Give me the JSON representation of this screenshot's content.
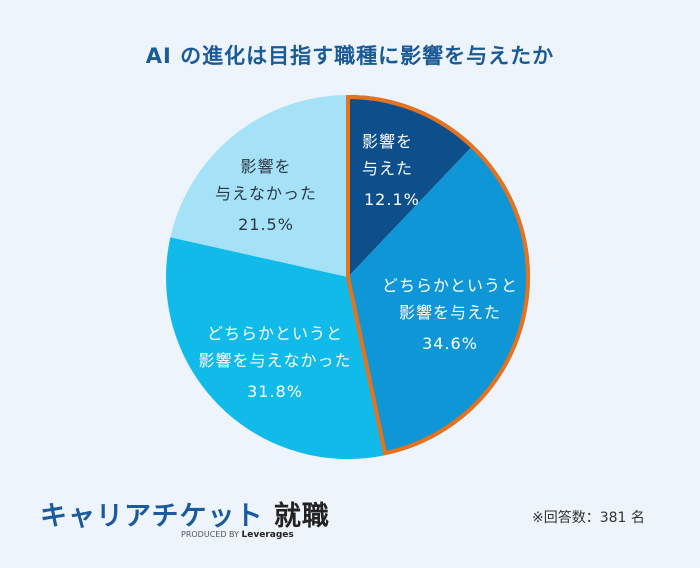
{
  "chart_data": {
    "type": "pie",
    "title": "AI の進化は目指す職種に影響を与えたか",
    "start_angle_deg": 0,
    "direction": "clockwise",
    "slices": [
      {
        "label": "影響を与えた",
        "value": 12.1,
        "color": "#0d4f8b",
        "highlighted": true
      },
      {
        "label": "どちらかというと影響を与えた",
        "value": 34.6,
        "color": "#0f96d6",
        "highlighted": true
      },
      {
        "label": "どちらかというと影響を与えなかった",
        "value": 31.8,
        "color": "#10bbe9",
        "highlighted": false
      },
      {
        "label": "影響を与えなかった",
        "value": 21.5,
        "color": "#a6e2f7",
        "highlighted": false
      }
    ],
    "highlight_outline_color": "#e8711c",
    "unit": "%",
    "note": "※回答数：381 名",
    "n": 381
  },
  "title": "AI の進化は目指す職種に影響を与えたか",
  "labels": {
    "s1": {
      "line1": "影響を",
      "line2": "与えた",
      "pct": "12.1%"
    },
    "s2": {
      "line1": "どちらかというと",
      "line2": "影響を与えた",
      "pct": "34.6%"
    },
    "s3": {
      "line1": "どちらかというと",
      "line2": "影響を与えなかった",
      "pct": "31.8%"
    },
    "s4": {
      "line1": "影響を",
      "line2": "与えなかった",
      "pct": "21.5%"
    }
  },
  "logo": {
    "brand": "キャリアチケット",
    "suffix": "就職",
    "produced_by": "PRODUCED BY",
    "company": "Leverages"
  },
  "footnote": "※回答数：381 名"
}
